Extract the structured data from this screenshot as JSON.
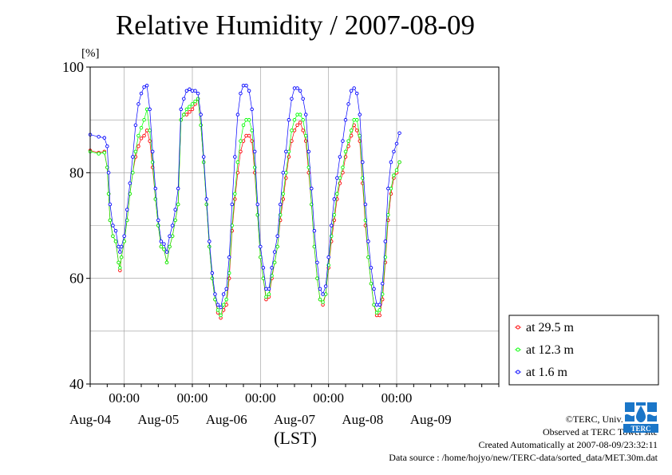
{
  "title": "Relative Humidity / 2007-08-09",
  "ylabel": "[%]",
  "xlabel": "(LST)",
  "credits": {
    "copyright": "©TERC, Univ. Tsukuba",
    "observed": "Observed at TERC Tower site",
    "created": "Created Automatically at 2007-08-09/23:32:11",
    "source": "Data source : /home/hojyo/new/TERC-data/sorted_data/MET.30m.dat"
  },
  "logo_text": "TERC",
  "chart_data": {
    "type": "line",
    "ylim": [
      40,
      100
    ],
    "y_ticks": [
      40,
      60,
      80,
      100
    ],
    "x_range_hours": [
      -12,
      132
    ],
    "x_time_ticks": [
      "00:00",
      "00:00",
      "00:00",
      "00:00",
      "00:00"
    ],
    "x_date_labels": [
      "Aug-04",
      "Aug-05",
      "Aug-06",
      "Aug-07",
      "Aug-08",
      "Aug-09"
    ],
    "grid": true,
    "legend": "right",
    "series": [
      {
        "name": "at 29.5 m",
        "color": "#ff0000",
        "points": [
          [
            -12,
            84.2
          ],
          [
            -9,
            83.8
          ],
          [
            -7,
            84.0
          ],
          [
            -6,
            81
          ],
          [
            -5.5,
            76
          ],
          [
            -5,
            71
          ],
          [
            -4,
            68
          ],
          [
            -3,
            67
          ],
          [
            -2,
            63
          ],
          [
            -1.5,
            61.5
          ],
          [
            -1,
            64
          ],
          [
            0,
            67
          ],
          [
            1,
            71
          ],
          [
            2,
            76
          ],
          [
            3,
            80
          ],
          [
            4,
            83
          ],
          [
            5,
            85
          ],
          [
            6,
            86.5
          ],
          [
            7,
            87
          ],
          [
            8,
            88
          ],
          [
            9,
            86
          ],
          [
            10,
            81
          ],
          [
            11,
            75
          ],
          [
            12,
            70
          ],
          [
            13,
            66
          ],
          [
            14,
            65.5
          ],
          [
            15,
            63
          ],
          [
            16,
            66
          ],
          [
            17,
            68
          ],
          [
            18,
            71
          ],
          [
            19,
            74
          ],
          [
            20,
            90
          ],
          [
            21,
            91
          ],
          [
            22,
            91
          ],
          [
            23,
            91.5
          ],
          [
            24,
            92
          ],
          [
            25,
            93
          ],
          [
            26,
            94
          ],
          [
            27,
            89
          ],
          [
            28,
            82
          ],
          [
            29,
            74
          ],
          [
            30,
            66
          ],
          [
            31,
            60
          ],
          [
            32,
            56
          ],
          [
            33,
            53.5
          ],
          [
            34,
            52.5
          ],
          [
            35,
            54
          ],
          [
            36,
            55
          ],
          [
            37,
            60
          ],
          [
            38,
            69
          ],
          [
            39,
            75
          ],
          [
            40,
            80
          ],
          [
            41,
            84
          ],
          [
            42,
            86
          ],
          [
            43,
            87
          ],
          [
            44,
            87
          ],
          [
            45,
            86
          ],
          [
            46,
            80
          ],
          [
            47,
            72
          ],
          [
            48,
            64
          ],
          [
            49,
            60
          ],
          [
            50,
            56
          ],
          [
            51,
            56.5
          ],
          [
            52,
            60
          ],
          [
            53,
            63
          ],
          [
            54,
            66
          ],
          [
            55,
            71
          ],
          [
            56,
            75
          ],
          [
            57,
            79
          ],
          [
            58,
            83
          ],
          [
            59,
            86
          ],
          [
            60,
            88
          ],
          [
            61,
            89
          ],
          [
            62,
            89.5
          ],
          [
            63,
            88
          ],
          [
            64,
            86
          ],
          [
            65,
            80
          ],
          [
            66,
            74
          ],
          [
            67,
            66
          ],
          [
            68,
            60
          ],
          [
            69,
            56
          ],
          [
            70,
            55
          ],
          [
            71,
            57
          ],
          [
            72,
            62
          ],
          [
            73,
            67
          ],
          [
            74,
            71
          ],
          [
            75,
            75
          ],
          [
            76,
            78
          ],
          [
            77,
            80
          ],
          [
            78,
            83
          ],
          [
            79,
            85
          ],
          [
            80,
            87
          ],
          [
            81,
            89
          ],
          [
            82,
            88
          ],
          [
            83,
            86
          ],
          [
            84,
            78
          ],
          [
            85,
            70
          ],
          [
            86,
            64
          ],
          [
            87,
            59
          ],
          [
            88,
            55
          ],
          [
            89,
            53
          ],
          [
            90,
            53
          ],
          [
            91,
            56
          ],
          [
            92,
            63
          ],
          [
            93,
            71
          ],
          [
            94,
            76
          ],
          [
            95,
            79
          ],
          [
            96,
            80
          ],
          [
            97,
            82
          ]
        ]
      },
      {
        "name": "at 12.3 m",
        "color": "#00ff00",
        "points": [
          [
            -12,
            84.0
          ],
          [
            -9,
            83.6
          ],
          [
            -7,
            83.8
          ],
          [
            -6,
            81
          ],
          [
            -5.5,
            76
          ],
          [
            -5,
            71
          ],
          [
            -4,
            68
          ],
          [
            -3,
            67
          ],
          [
            -2,
            63
          ],
          [
            -1.5,
            62
          ],
          [
            -1,
            64
          ],
          [
            0,
            67
          ],
          [
            1,
            71
          ],
          [
            2,
            76
          ],
          [
            3,
            80
          ],
          [
            4,
            84
          ],
          [
            5,
            87
          ],
          [
            6,
            88.5
          ],
          [
            7,
            90
          ],
          [
            8,
            92
          ],
          [
            9,
            88
          ],
          [
            10,
            82
          ],
          [
            11,
            75
          ],
          [
            12,
            70
          ],
          [
            13,
            66
          ],
          [
            14,
            65.5
          ],
          [
            15,
            63
          ],
          [
            16,
            66
          ],
          [
            17,
            68
          ],
          [
            18,
            71
          ],
          [
            19,
            74
          ],
          [
            20,
            90
          ],
          [
            21,
            91
          ],
          [
            22,
            92
          ],
          [
            23,
            92.5
          ],
          [
            24,
            93
          ],
          [
            25,
            93.5
          ],
          [
            26,
            94
          ],
          [
            27,
            89
          ],
          [
            28,
            82
          ],
          [
            29,
            74
          ],
          [
            30,
            66
          ],
          [
            31,
            60
          ],
          [
            32,
            56
          ],
          [
            33,
            54
          ],
          [
            34,
            53
          ],
          [
            35,
            55
          ],
          [
            36,
            56
          ],
          [
            37,
            61
          ],
          [
            38,
            70
          ],
          [
            39,
            76
          ],
          [
            40,
            82
          ],
          [
            41,
            86
          ],
          [
            42,
            89
          ],
          [
            43,
            90
          ],
          [
            44,
            90
          ],
          [
            45,
            88
          ],
          [
            46,
            81
          ],
          [
            47,
            72
          ],
          [
            48,
            64
          ],
          [
            49,
            60
          ],
          [
            50,
            56.5
          ],
          [
            51,
            57
          ],
          [
            52,
            60.5
          ],
          [
            53,
            63
          ],
          [
            54,
            66
          ],
          [
            55,
            72
          ],
          [
            56,
            76
          ],
          [
            57,
            80
          ],
          [
            58,
            84
          ],
          [
            59,
            88
          ],
          [
            60,
            90
          ],
          [
            61,
            91
          ],
          [
            62,
            91
          ],
          [
            63,
            90
          ],
          [
            64,
            87
          ],
          [
            65,
            81
          ],
          [
            66,
            74
          ],
          [
            67,
            66
          ],
          [
            68,
            60
          ],
          [
            69,
            56
          ],
          [
            70,
            55.5
          ],
          [
            71,
            57
          ],
          [
            72,
            62.5
          ],
          [
            73,
            68
          ],
          [
            74,
            72
          ],
          [
            75,
            76
          ],
          [
            76,
            79
          ],
          [
            77,
            81
          ],
          [
            78,
            84
          ],
          [
            79,
            86
          ],
          [
            80,
            88
          ],
          [
            81,
            90
          ],
          [
            82,
            90
          ],
          [
            83,
            87
          ],
          [
            84,
            79
          ],
          [
            85,
            71
          ],
          [
            86,
            64
          ],
          [
            87,
            59
          ],
          [
            88,
            55
          ],
          [
            89,
            53.5
          ],
          [
            90,
            54
          ],
          [
            91,
            57
          ],
          [
            92,
            64
          ],
          [
            93,
            72
          ],
          [
            94,
            77
          ],
          [
            95,
            79.5
          ],
          [
            96,
            80.5
          ],
          [
            97,
            82
          ]
        ]
      },
      {
        "name": "at 1.6 m",
        "color": "#0000ff",
        "points": [
          [
            -12,
            87.2
          ],
          [
            -9,
            86.8
          ],
          [
            -7,
            86.6
          ],
          [
            -6,
            85
          ],
          [
            -5.5,
            80
          ],
          [
            -5,
            74
          ],
          [
            -4,
            70
          ],
          [
            -3,
            69
          ],
          [
            -2,
            66
          ],
          [
            -1.5,
            65
          ],
          [
            -1,
            66
          ],
          [
            0,
            68
          ],
          [
            1,
            73
          ],
          [
            2,
            78
          ],
          [
            3,
            83
          ],
          [
            4,
            89
          ],
          [
            5,
            93
          ],
          [
            6,
            95
          ],
          [
            7,
            96.2
          ],
          [
            8,
            96.5
          ],
          [
            9,
            92
          ],
          [
            10,
            84
          ],
          [
            11,
            77
          ],
          [
            12,
            71
          ],
          [
            13,
            67
          ],
          [
            14,
            66.5
          ],
          [
            15,
            65
          ],
          [
            16,
            68
          ],
          [
            17,
            70
          ],
          [
            18,
            73
          ],
          [
            19,
            77
          ],
          [
            20,
            92
          ],
          [
            21,
            94
          ],
          [
            22,
            95.5
          ],
          [
            23,
            95.8
          ],
          [
            24,
            95.5
          ],
          [
            25,
            95.5
          ],
          [
            26,
            95
          ],
          [
            27,
            91
          ],
          [
            28,
            83
          ],
          [
            29,
            75
          ],
          [
            30,
            67
          ],
          [
            31,
            61
          ],
          [
            32,
            57
          ],
          [
            33,
            55
          ],
          [
            34,
            54.5
          ],
          [
            35,
            57
          ],
          [
            36,
            58
          ],
          [
            37,
            64
          ],
          [
            38,
            74
          ],
          [
            39,
            83
          ],
          [
            40,
            91
          ],
          [
            41,
            95
          ],
          [
            42,
            96.5
          ],
          [
            43,
            96.5
          ],
          [
            44,
            95.5
          ],
          [
            45,
            92
          ],
          [
            46,
            84
          ],
          [
            47,
            74
          ],
          [
            48,
            66
          ],
          [
            49,
            62
          ],
          [
            50,
            58
          ],
          [
            51,
            58
          ],
          [
            52,
            62
          ],
          [
            53,
            65
          ],
          [
            54,
            68
          ],
          [
            55,
            74
          ],
          [
            56,
            80
          ],
          [
            57,
            84
          ],
          [
            58,
            90
          ],
          [
            59,
            94
          ],
          [
            60,
            96
          ],
          [
            61,
            96
          ],
          [
            62,
            95.5
          ],
          [
            63,
            94
          ],
          [
            64,
            91
          ],
          [
            65,
            84
          ],
          [
            66,
            77
          ],
          [
            67,
            69
          ],
          [
            68,
            63
          ],
          [
            69,
            58
          ],
          [
            70,
            57
          ],
          [
            71,
            58.5
          ],
          [
            72,
            64
          ],
          [
            73,
            70
          ],
          [
            74,
            75
          ],
          [
            75,
            79
          ],
          [
            76,
            83
          ],
          [
            77,
            86
          ],
          [
            78,
            90
          ],
          [
            79,
            93
          ],
          [
            80,
            95.5
          ],
          [
            81,
            96
          ],
          [
            82,
            95
          ],
          [
            83,
            91
          ],
          [
            84,
            82
          ],
          [
            85,
            74
          ],
          [
            86,
            67
          ],
          [
            87,
            62
          ],
          [
            88,
            58
          ],
          [
            89,
            55
          ],
          [
            90,
            55
          ],
          [
            91,
            59
          ],
          [
            92,
            67
          ],
          [
            93,
            77
          ],
          [
            94,
            82
          ],
          [
            95,
            84
          ],
          [
            96,
            85.5
          ],
          [
            97,
            87.5
          ]
        ]
      }
    ]
  }
}
